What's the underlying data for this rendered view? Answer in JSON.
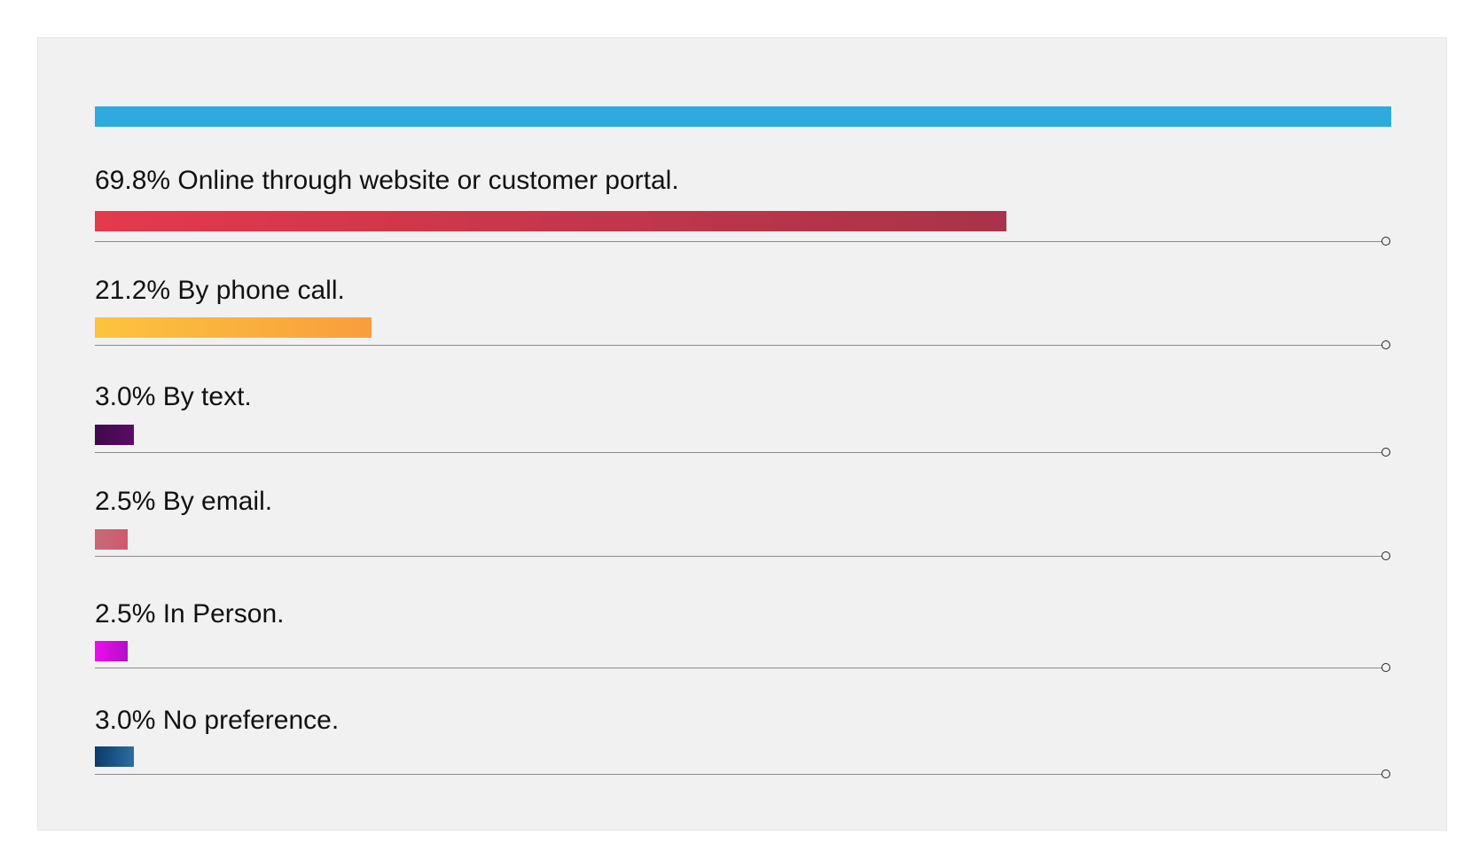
{
  "chart_data": {
    "type": "bar",
    "orientation": "horizontal",
    "axis_max_percent": 100,
    "items": [
      {
        "value": 69.8,
        "label": "69.8% Online through website or customer portal.",
        "color_from": "#e43a4a",
        "color_to": "#a8334a"
      },
      {
        "value": 21.2,
        "label": "21.2% By phone call.",
        "color_from": "#fcc43e",
        "color_to": "#f89e3d"
      },
      {
        "value": 3.0,
        "label": "3.0% By text.",
        "color_from": "#3d0a4c",
        "color_to": "#5c0a66"
      },
      {
        "value": 2.5,
        "label": "2.5% By email.",
        "color_from": "#c86a77",
        "color_to": "#cc5a6c"
      },
      {
        "value": 2.5,
        "label": "2.5% In Person.",
        "color_from": "#f00cf0",
        "color_to": "#b010c8"
      },
      {
        "value": 3.0,
        "label": "3.0% No preference.",
        "color_from": "#0c3a6c",
        "color_to": "#2b6e9e"
      }
    ],
    "header_bar_color": "#2eaadf"
  }
}
